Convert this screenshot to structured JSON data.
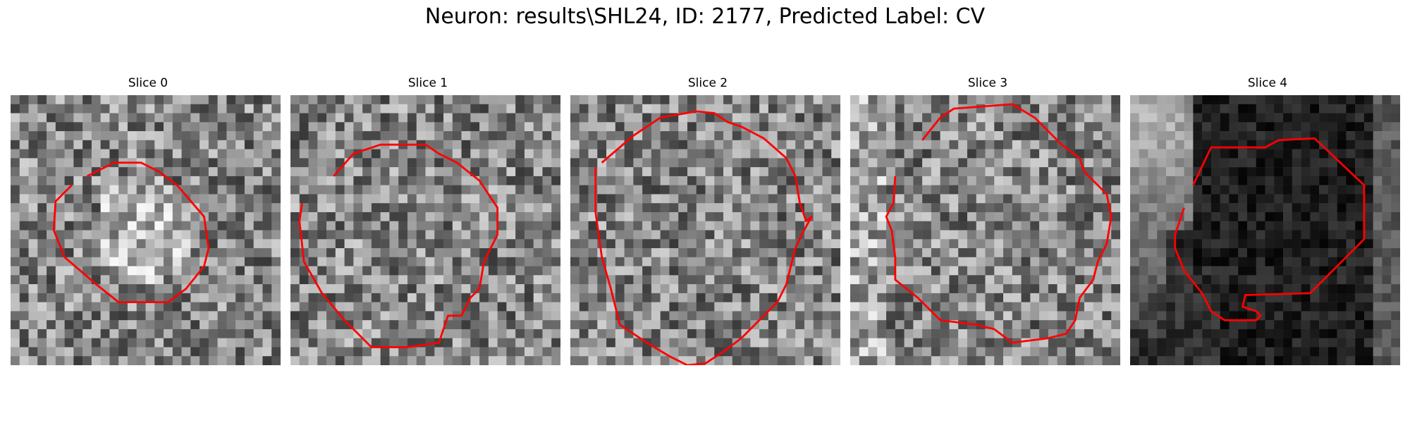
{
  "figure": {
    "title": "Neuron: results\\SHL24, ID: 2177, Predicted Label: CV",
    "contour_color": "#ff0000"
  },
  "slices": [
    {
      "title": "Slice 0",
      "tone": "gray",
      "contour": "circle"
    },
    {
      "title": "Slice 1",
      "tone": "gray",
      "contour": "circle"
    },
    {
      "title": "Slice 2",
      "tone": "gray",
      "contour": "circle"
    },
    {
      "title": "Slice 3",
      "tone": "gray",
      "contour": "circle"
    },
    {
      "title": "Slice 4",
      "tone": "dark",
      "contour": "irregular"
    }
  ]
}
